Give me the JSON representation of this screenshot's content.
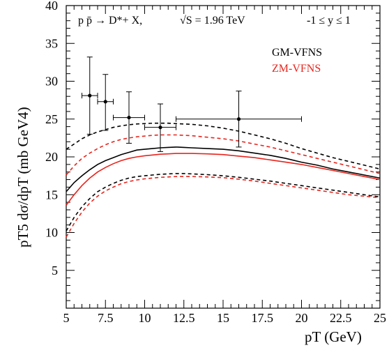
{
  "chart_data": {
    "type": "line",
    "annotation": {
      "process": "p p̄ → D*+ X,",
      "energy": "√S = 1.96 TeV",
      "rapidity": "-1 ≤  y ≤ 1"
    },
    "xlabel": "pT (GeV)",
    "ylabel": "pT5 dσ/dpT (mb GeV4)",
    "xlim": [
      5,
      25
    ],
    "ylim": [
      0,
      40
    ],
    "xticks": [
      5,
      7.5,
      10,
      12.5,
      15,
      17.5,
      20,
      22.5,
      25
    ],
    "xtick_labels": [
      "5",
      "7.5",
      "10",
      "12.5",
      "15",
      "17.5",
      "20",
      "22.5",
      "25"
    ],
    "yticks": [
      5,
      10,
      15,
      20,
      25,
      30,
      35,
      40
    ],
    "ytick_labels": [
      "5",
      "10",
      "15",
      "20",
      "25",
      "30",
      "35",
      "40"
    ],
    "legend": [
      {
        "label": "GM-VFNS",
        "color": "#000000"
      },
      {
        "label": "ZM-VFNS",
        "color": "#e8241c"
      }
    ],
    "series": [
      {
        "name": "GM-VFNS",
        "color": "#000000",
        "style": "solid",
        "x": [
          5,
          5.5,
          6,
          6.5,
          7,
          7.5,
          8,
          8.5,
          9,
          9.5,
          10,
          10.5,
          11,
          11.5,
          12,
          12.5,
          13,
          14,
          15,
          16,
          17,
          18,
          19,
          20,
          21,
          22,
          23,
          24,
          25
        ],
        "y": [
          15.4,
          16.6,
          17.5,
          18.3,
          19.0,
          19.5,
          19.9,
          20.3,
          20.6,
          20.9,
          21.0,
          21.1,
          21.2,
          21.25,
          21.3,
          21.25,
          21.2,
          21.1,
          21.0,
          20.8,
          20.5,
          20.2,
          19.8,
          19.3,
          18.9,
          18.4,
          18.0,
          17.6,
          17.2
        ]
      },
      {
        "name": "GM-VFNS upper",
        "color": "#000000",
        "style": "dashed",
        "x": [
          5,
          5.5,
          6,
          6.5,
          7,
          7.5,
          8,
          8.5,
          9,
          9.5,
          10,
          10.5,
          11,
          11.5,
          12,
          12.5,
          13,
          14,
          15,
          16,
          17,
          18,
          19,
          20,
          21,
          22,
          23,
          24,
          25
        ],
        "y": [
          21.0,
          21.7,
          22.4,
          22.9,
          23.3,
          23.6,
          23.9,
          24.1,
          24.25,
          24.35,
          24.4,
          24.45,
          24.45,
          24.45,
          24.4,
          24.35,
          24.3,
          24.1,
          23.8,
          23.4,
          22.9,
          22.4,
          21.8,
          21.1,
          20.5,
          19.9,
          19.4,
          18.9,
          18.4
        ]
      },
      {
        "name": "GM-VFNS lower",
        "color": "#000000",
        "style": "dashed",
        "x": [
          5,
          5.5,
          6,
          6.5,
          7,
          7.5,
          8,
          8.5,
          9,
          9.5,
          10,
          10.5,
          11,
          11.5,
          12,
          12.5,
          13,
          14,
          15,
          16,
          17,
          18,
          19,
          20,
          21,
          22,
          23,
          24,
          25
        ],
        "y": [
          10.2,
          12.0,
          13.4,
          14.5,
          15.4,
          16.0,
          16.5,
          16.9,
          17.2,
          17.4,
          17.5,
          17.6,
          17.7,
          17.75,
          17.8,
          17.8,
          17.75,
          17.65,
          17.5,
          17.3,
          17.05,
          16.8,
          16.5,
          16.2,
          15.9,
          15.6,
          15.3,
          15.0,
          14.7
        ]
      },
      {
        "name": "ZM-VFNS",
        "color": "#e8241c",
        "style": "solid",
        "x": [
          5,
          5.5,
          6,
          6.5,
          7,
          7.5,
          8,
          8.5,
          9,
          9.5,
          10,
          10.5,
          11,
          11.5,
          12,
          12.5,
          13,
          14,
          15,
          16,
          17,
          18,
          19,
          20,
          21,
          22,
          23,
          24,
          25
        ],
        "y": [
          13.6,
          15.0,
          16.2,
          17.2,
          18.0,
          18.6,
          19.1,
          19.5,
          19.8,
          20.0,
          20.15,
          20.25,
          20.35,
          20.4,
          20.45,
          20.45,
          20.45,
          20.4,
          20.3,
          20.1,
          19.9,
          19.6,
          19.3,
          19.0,
          18.6,
          18.2,
          17.8,
          17.4,
          17.0
        ]
      },
      {
        "name": "ZM-VFNS upper",
        "color": "#e8241c",
        "style": "dashed",
        "x": [
          5,
          5.5,
          6,
          6.5,
          7,
          7.5,
          8,
          8.5,
          9,
          9.5,
          10,
          10.5,
          11,
          11.5,
          12,
          12.5,
          13,
          14,
          15,
          16,
          17,
          18,
          19,
          20,
          21,
          22,
          23,
          24,
          25
        ],
        "y": [
          17.6,
          18.8,
          19.8,
          20.5,
          21.1,
          21.6,
          22.0,
          22.3,
          22.5,
          22.65,
          22.75,
          22.85,
          22.9,
          22.9,
          22.9,
          22.85,
          22.8,
          22.6,
          22.4,
          22.1,
          21.7,
          21.3,
          20.8,
          20.3,
          19.8,
          19.3,
          18.8,
          18.3,
          17.8
        ]
      },
      {
        "name": "ZM-VFNS lower",
        "color": "#e8241c",
        "style": "dashed",
        "x": [
          5,
          5.5,
          6,
          6.5,
          7,
          7.5,
          8,
          8.5,
          9,
          9.5,
          10,
          10.5,
          11,
          11.5,
          12,
          12.5,
          13,
          14,
          15,
          16,
          17,
          18,
          19,
          20,
          21,
          22,
          23,
          24,
          25
        ],
        "y": [
          9.4,
          11.2,
          12.7,
          13.9,
          14.8,
          15.5,
          16.0,
          16.45,
          16.75,
          16.95,
          17.1,
          17.2,
          17.3,
          17.35,
          17.4,
          17.4,
          17.4,
          17.35,
          17.25,
          17.05,
          16.8,
          16.5,
          16.2,
          15.9,
          15.6,
          15.3,
          15.0,
          14.8,
          14.6
        ]
      }
    ],
    "data_points": [
      {
        "x": 6.5,
        "y": 28.1,
        "xlo": 6.0,
        "xhi": 7.0,
        "ylo": 23.0,
        "yhi": 33.2
      },
      {
        "x": 7.5,
        "y": 27.3,
        "xlo": 7.0,
        "xhi": 8.0,
        "ylo": 23.5,
        "yhi": 30.9
      },
      {
        "x": 9.0,
        "y": 25.2,
        "xlo": 8.0,
        "xhi": 10.0,
        "ylo": 21.8,
        "yhi": 28.6
      },
      {
        "x": 11.0,
        "y": 23.9,
        "xlo": 10.0,
        "xhi": 12.0,
        "ylo": 20.7,
        "yhi": 27.0
      },
      {
        "x": 16.0,
        "y": 25.0,
        "xlo": 12.0,
        "xhi": 20.0,
        "ylo": 21.3,
        "yhi": 28.7
      }
    ]
  }
}
